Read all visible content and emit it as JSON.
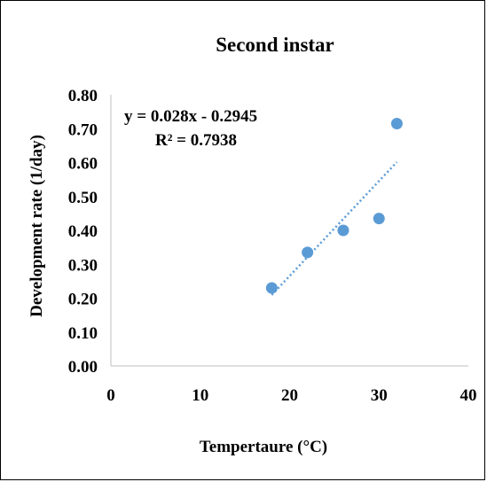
{
  "chart_data": {
    "type": "scatter",
    "title": "Second instar",
    "xlabel": "Tempertaure (°C)",
    "ylabel": "Development rate (1/day)",
    "xlim": [
      0,
      40
    ],
    "ylim": [
      0,
      0.8
    ],
    "xticks": [
      0,
      10,
      20,
      30,
      40
    ],
    "xtick_labels": [
      "0",
      "10",
      "20",
      "30",
      "40"
    ],
    "yticks": [
      0,
      0.1,
      0.2,
      0.3,
      0.4,
      0.5,
      0.6,
      0.7,
      0.8
    ],
    "ytick_labels": [
      "0.00",
      "0.10",
      "0.20",
      "0.30",
      "0.40",
      "0.50",
      "0.60",
      "0.70",
      "0.80"
    ],
    "x": [
      18,
      22,
      26,
      30,
      32
    ],
    "y": [
      0.23,
      0.335,
      0.4,
      0.435,
      0.715
    ],
    "trendline": {
      "type": "linear",
      "slope": 0.028,
      "intercept": -0.2945,
      "x_range": [
        18,
        32
      ],
      "equation": "y = 0.028x - 0.2945",
      "r_squared": "R² = 0.7938"
    },
    "marker_color": "#5b9bd5",
    "trendline_color": "#5b9bd5",
    "grid": false,
    "legend": "none"
  }
}
